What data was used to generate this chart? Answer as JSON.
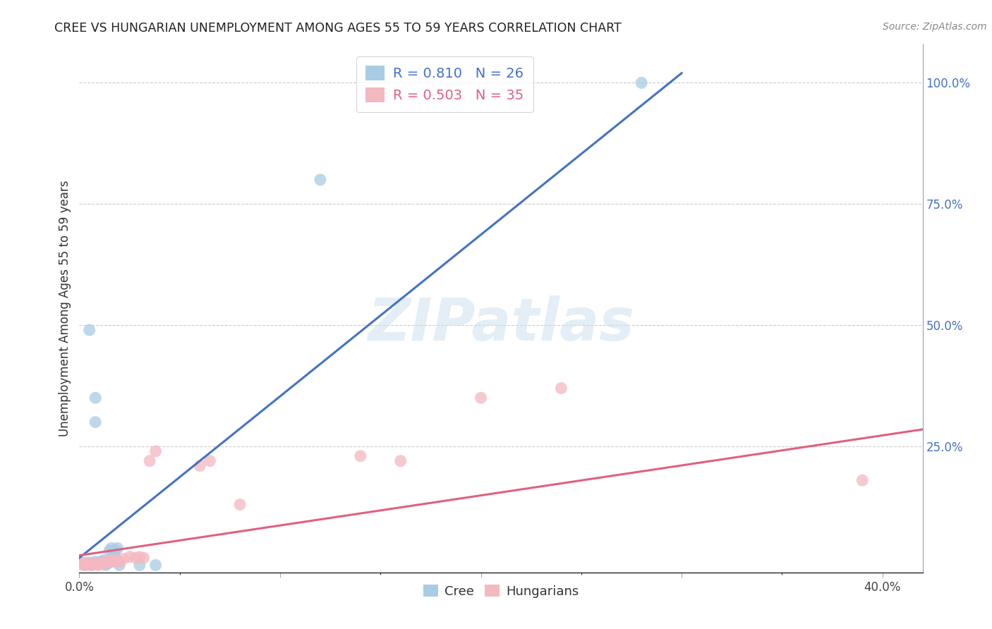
{
  "title": "CREE VS HUNGARIAN UNEMPLOYMENT AMONG AGES 55 TO 59 YEARS CORRELATION CHART",
  "source": "Source: ZipAtlas.com",
  "ylabel_label": "Unemployment Among Ages 55 to 59 years",
  "xlim": [
    0.0,
    0.42
  ],
  "ylim": [
    -0.01,
    1.08
  ],
  "cree_color": "#a8cce4",
  "hungarian_color": "#f4b8c1",
  "cree_line_color": "#4472c4",
  "hungarian_line_color": "#e06080",
  "cree_R": 0.81,
  "cree_N": 26,
  "hungarian_R": 0.503,
  "hungarian_N": 35,
  "watermark_text": "ZIPatlas",
  "cree_line": {
    "x0": 0.0,
    "y0": 0.02,
    "x1": 0.3,
    "y1": 1.02
  },
  "hung_line": {
    "x0": 0.0,
    "y0": 0.025,
    "x1": 0.42,
    "y1": 0.285
  },
  "cree_points": [
    [
      0.002,
      0.005
    ],
    [
      0.003,
      0.01
    ],
    [
      0.004,
      0.007
    ],
    [
      0.005,
      0.01
    ],
    [
      0.006,
      0.005
    ],
    [
      0.007,
      0.008
    ],
    [
      0.008,
      0.012
    ],
    [
      0.009,
      0.01
    ],
    [
      0.01,
      0.007
    ],
    [
      0.011,
      0.012
    ],
    [
      0.012,
      0.015
    ],
    [
      0.013,
      0.005
    ],
    [
      0.014,
      0.008
    ],
    [
      0.015,
      0.035
    ],
    [
      0.016,
      0.04
    ],
    [
      0.017,
      0.03
    ],
    [
      0.018,
      0.035
    ],
    [
      0.019,
      0.04
    ],
    [
      0.02,
      0.005
    ],
    [
      0.03,
      0.005
    ],
    [
      0.038,
      0.005
    ],
    [
      0.005,
      0.49
    ],
    [
      0.008,
      0.35
    ],
    [
      0.008,
      0.3
    ],
    [
      0.12,
      0.8
    ],
    [
      0.28,
      1.0
    ]
  ],
  "hungarian_points": [
    [
      0.001,
      0.01
    ],
    [
      0.002,
      0.008
    ],
    [
      0.003,
      0.005
    ],
    [
      0.004,
      0.007
    ],
    [
      0.005,
      0.008
    ],
    [
      0.006,
      0.005
    ],
    [
      0.007,
      0.007
    ],
    [
      0.008,
      0.008
    ],
    [
      0.009,
      0.005
    ],
    [
      0.01,
      0.008
    ],
    [
      0.011,
      0.007
    ],
    [
      0.012,
      0.01
    ],
    [
      0.013,
      0.01
    ],
    [
      0.014,
      0.012
    ],
    [
      0.015,
      0.015
    ],
    [
      0.016,
      0.012
    ],
    [
      0.017,
      0.015
    ],
    [
      0.018,
      0.012
    ],
    [
      0.019,
      0.015
    ],
    [
      0.02,
      0.012
    ],
    [
      0.022,
      0.018
    ],
    [
      0.025,
      0.022
    ],
    [
      0.028,
      0.02
    ],
    [
      0.03,
      0.022
    ],
    [
      0.032,
      0.02
    ],
    [
      0.035,
      0.22
    ],
    [
      0.038,
      0.24
    ],
    [
      0.06,
      0.21
    ],
    [
      0.065,
      0.22
    ],
    [
      0.08,
      0.13
    ],
    [
      0.14,
      0.23
    ],
    [
      0.16,
      0.22
    ],
    [
      0.2,
      0.35
    ],
    [
      0.24,
      0.37
    ],
    [
      0.39,
      0.18
    ]
  ]
}
